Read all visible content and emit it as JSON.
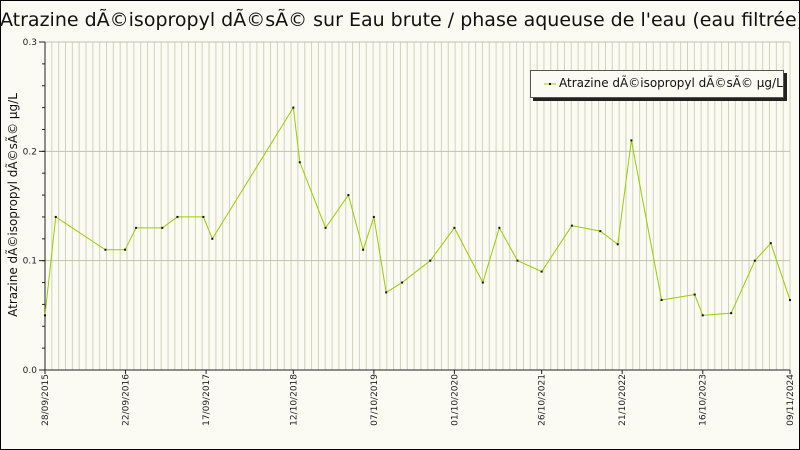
{
  "chart_data": {
    "type": "line",
    "title": "Atrazine dÃ©isopropyl dÃ©sÃ© sur Eau brute / phase aqueuse de l'eau (eau filtrée)",
    "ylabel": "Atrazine dÃ©isopropyl dÃ©sÃ© µg/L",
    "xlabel": "",
    "ylim": [
      0,
      0.3
    ],
    "yticks": [
      "0.0",
      "0.1",
      "0.2",
      "0.3"
    ],
    "xticks": [
      "28/09/2015",
      "22/09/2016",
      "17/09/2017",
      "12/10/2018",
      "07/10/2019",
      "01/10/2020",
      "26/10/2021",
      "21/10/2022",
      "16/10/2023",
      "09/11/2024"
    ],
    "grid": true,
    "legend_position": "top-right",
    "series": [
      {
        "name": "Atrazine dÃ©isopropyl dÃ©sÃ© µg/L",
        "color": "#99cc00",
        "x": [
          "28/09/2015",
          "15/11/2015",
          "24/06/2016",
          "20/09/2016",
          "08/11/2016",
          "05/03/2017",
          "12/05/2017",
          "05/09/2017",
          "15/10/2017",
          "12/10/2018",
          "10/11/2018",
          "05/03/2019",
          "15/06/2019",
          "20/08/2019",
          "07/10/2019",
          "01/12/2019",
          "10/02/2020",
          "15/06/2020",
          "01/10/2020",
          "05/02/2021",
          "20/04/2021",
          "10/07/2021",
          "26/10/2021",
          "10/03/2022",
          "15/07/2022",
          "01/10/2022",
          "01/12/2022",
          "15/04/2023",
          "10/09/2023",
          "16/10/2023",
          "20/02/2024",
          "05/06/2024",
          "15/08/2024",
          "09/11/2024"
        ],
        "values": [
          0.05,
          0.14,
          0.11,
          0.11,
          0.13,
          0.13,
          0.14,
          0.14,
          0.12,
          0.24,
          0.19,
          0.13,
          0.16,
          0.11,
          0.14,
          0.071,
          0.08,
          0.1,
          0.13,
          0.08,
          0.13,
          0.1,
          0.09,
          0.132,
          0.127,
          0.115,
          0.21,
          0.064,
          0.069,
          0.05,
          0.052,
          0.1,
          0.116,
          0.064
        ]
      }
    ]
  }
}
